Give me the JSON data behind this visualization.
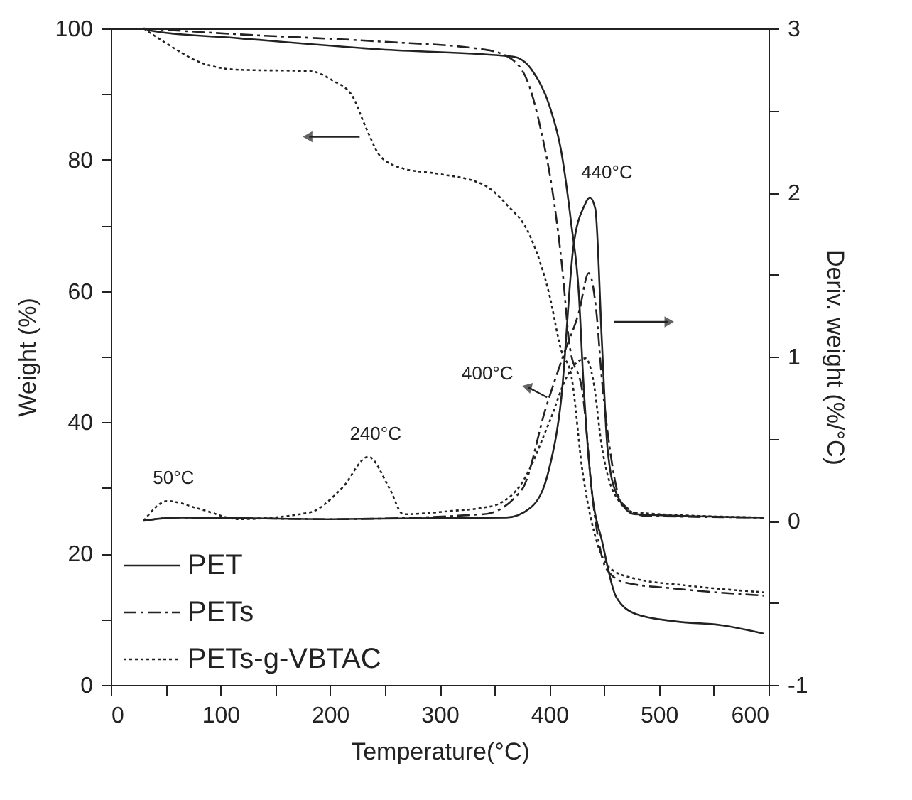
{
  "chart_data": {
    "type": "line",
    "xlabel": "Temperature(°C)",
    "ylabel": "Weight (%)",
    "y2label": "Deriv. weight (%/°C)",
    "xlim": [
      0,
      600
    ],
    "xticks": [
      0,
      {
        "value": 50,
        "label": null
      },
      100,
      {
        "value": 150,
        "label": null
      },
      200,
      {
        "value": 250,
        "label": null
      },
      300,
      {
        "value": 350,
        "label": null
      },
      400,
      {
        "value": 450,
        "label": null
      },
      500,
      {
        "value": 550,
        "label": null
      },
      600
    ],
    "ylim": [
      0,
      100
    ],
    "yticks": [
      0,
      {
        "value": 10,
        "label": null
      },
      20,
      {
        "value": 30,
        "label": null
      },
      40,
      {
        "value": 50,
        "label": null
      },
      60,
      {
        "value": 70,
        "label": null
      },
      80,
      {
        "value": 90,
        "label": null
      },
      100
    ],
    "y2lim": [
      -1,
      3
    ],
    "y2ticks": [
      -1,
      {
        "value": -0.5,
        "label": null
      },
      0,
      {
        "value": 0.5,
        "label": null
      },
      1,
      {
        "value": 1.5,
        "label": null
      },
      2,
      {
        "value": 2.5,
        "label": null
      },
      3
    ],
    "legend": "bottom left",
    "grid": false,
    "series": [
      {
        "name": "PET",
        "color": "#222222",
        "line_style": "solid",
        "x": [
          30,
          39,
          117,
          246,
          367,
          384,
          400,
          411,
          420,
          427,
          431,
          439,
          448,
          461,
          479,
          514,
          557,
          596
        ],
        "values": [
          100,
          99.6,
          98.5,
          96.8,
          95.7,
          93.7,
          88.3,
          81.2,
          70.3,
          59.5,
          46.5,
          29.2,
          22,
          13.4,
          10.8,
          9.7,
          9.1,
          7.8
        ]
      },
      {
        "name": "PETs",
        "color": "#222222",
        "line_style": "dashed",
        "x": [
          30,
          117,
          246,
          340,
          362,
          380,
          392,
          404,
          412,
          418,
          431,
          439,
          452,
          469,
          513,
          596
        ],
        "values": [
          100,
          99.1,
          98,
          96.8,
          95.7,
          92,
          84.8,
          74,
          63.2,
          52.4,
          43.7,
          29.2,
          17.7,
          15.6,
          14.7,
          13.6
        ]
      },
      {
        "name": "PETs-g-VBTAC",
        "color": "#222222",
        "line_style": "dotted",
        "x": [
          30,
          50,
          82,
          117,
          181,
          203,
          220,
          233,
          246,
          268,
          297,
          340,
          361,
          383,
          400,
          411,
          420,
          430,
          443,
          456,
          478,
          522,
          596
        ],
        "values": [
          100,
          97.8,
          94.8,
          93.7,
          93.5,
          92,
          89.8,
          84.8,
          80.5,
          78.6,
          77.9,
          76.2,
          73.2,
          68.2,
          59.5,
          50.9,
          47.2,
          32.9,
          22,
          17.7,
          16.2,
          15.2,
          14.1
        ]
      },
      {
        "color": "#222222",
        "line_style": "solid",
        "axis": "y2",
        "x": [
          30,
          60,
          200,
          361,
          383,
          400,
          411,
          422,
          432,
          437,
          442,
          448,
          453,
          461,
          478,
          596
        ],
        "values": [
          0,
          0.02,
          0.01,
          0.02,
          0.08,
          0.32,
          0.75,
          1.67,
          1.92,
          1.97,
          1.9,
          1.09,
          0.45,
          0.17,
          0.04,
          0.02
        ]
      },
      {
        "color": "#222222",
        "line_style": "dashed",
        "axis": "y2",
        "x": [
          30,
          60,
          200,
          340,
          375,
          397,
          414,
          427,
          436,
          443,
          448,
          455,
          466,
          488,
          596
        ],
        "values": [
          0,
          0.02,
          0.01,
          0.04,
          0.19,
          0.69,
          1.03,
          1.27,
          1.51,
          1.27,
          0.86,
          0.45,
          0.11,
          0.03,
          0.02
        ]
      },
      {
        "color": "#222222",
        "line_style": "dotted",
        "axis": "y2",
        "x": [
          30,
          52,
          82,
          117,
          181,
          211,
          235,
          254,
          267,
          311,
          340,
          353,
          375,
          400,
          417,
          433,
          440,
          448,
          459,
          478,
          596
        ],
        "values": [
          0,
          0.12,
          0.07,
          0.01,
          0.05,
          0.2,
          0.39,
          0.2,
          0.04,
          0.06,
          0.08,
          0.1,
          0.23,
          0.6,
          0.89,
          0.99,
          0.86,
          0.45,
          0.17,
          0.05,
          0.02
        ]
      }
    ],
    "annotations": [
      {
        "text": "440°C",
        "x": 437,
        "y": 74.3
      },
      {
        "text": "400°C",
        "x": 398,
        "y": 43.7
      },
      {
        "text": "240°C",
        "x": 235,
        "y": 34.7
      },
      {
        "text": "50°C",
        "x": 52,
        "y": 28
      }
    ]
  }
}
